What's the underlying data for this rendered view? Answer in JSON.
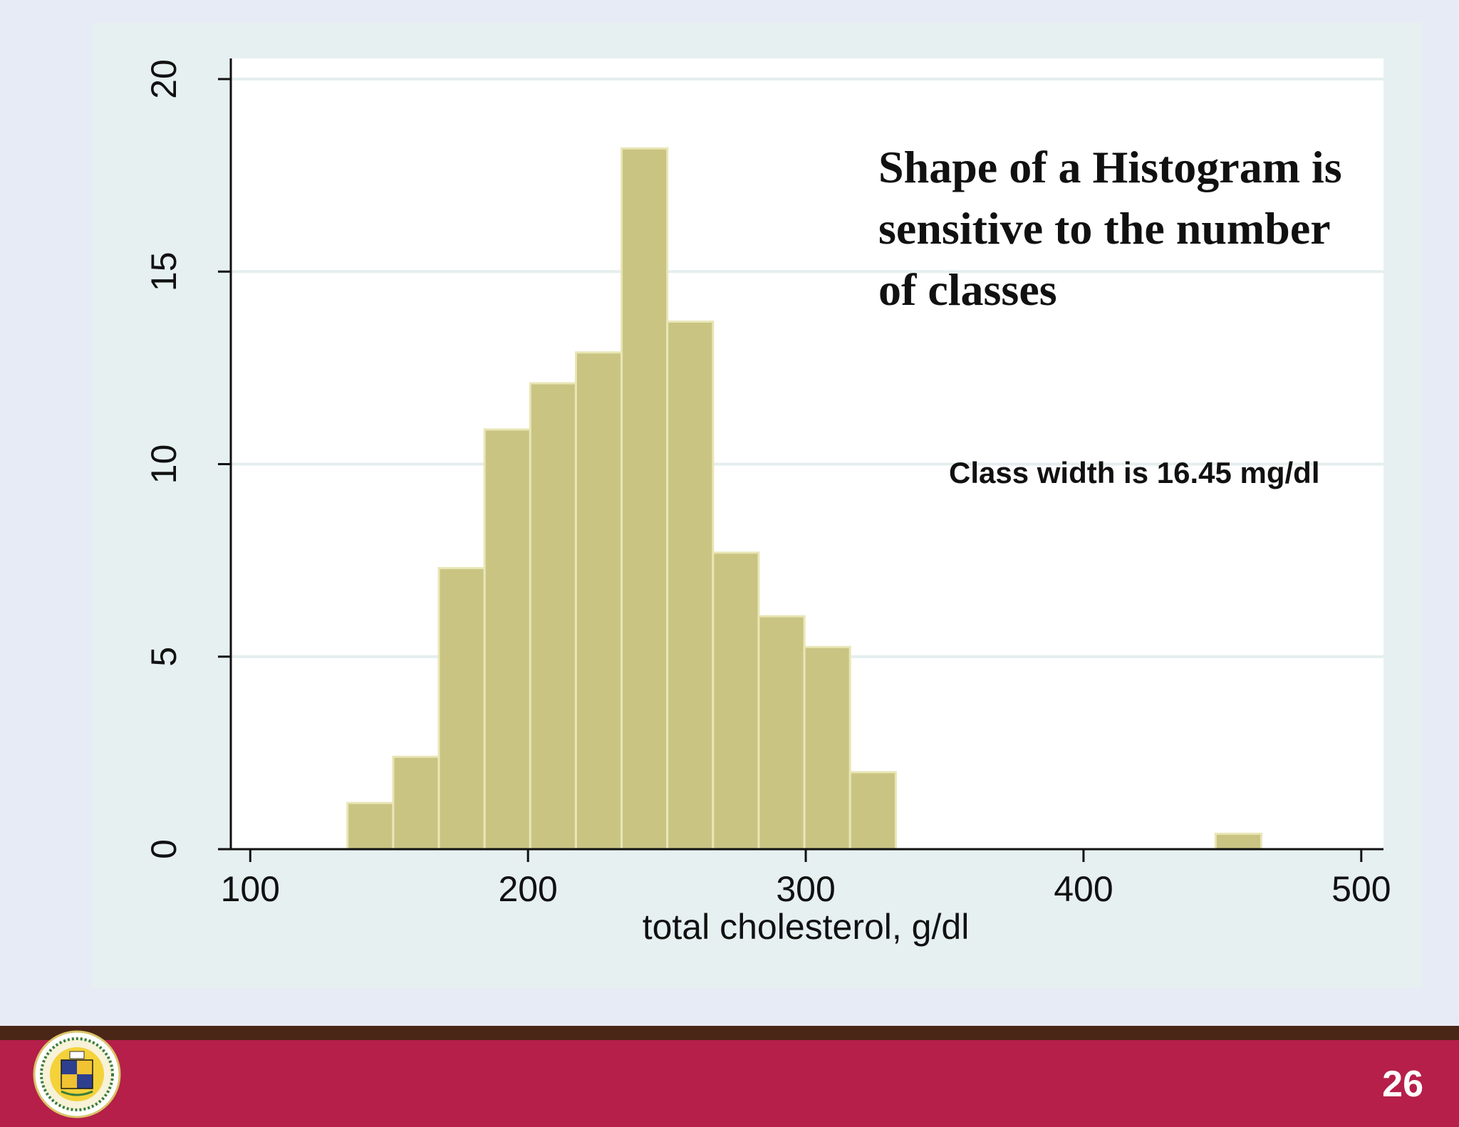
{
  "slide": {
    "page_number": "26",
    "logo_text": "MBARARA UNIVERSITY OF SCIENCE AND TECHNOLOGY"
  },
  "colors": {
    "bar_fill": "#c9c482",
    "bar_stroke": "#e9e6b6",
    "plot_bg": "#ffffff",
    "panel_bg": "#e6f0f1",
    "footer": "#b51f49",
    "footer_stripe": "#4a2617"
  },
  "annotations": {
    "title_lines": [
      "Shape of  a Histogram is",
      "sensitive to the number",
      "of  classes"
    ],
    "class_width": "Class width is 16.45 mg/dl"
  },
  "chart_data": {
    "type": "bar",
    "xlabel": "total cholesterol, g/dl",
    "ylabel": "",
    "xlim": [
      93,
      508
    ],
    "ylim": [
      0,
      20
    ],
    "x_ticks": [
      100,
      200,
      300,
      400,
      500
    ],
    "y_ticks": [
      0,
      5,
      10,
      15,
      20
    ],
    "grid": true,
    "bin_width": 16.45,
    "bins": [
      {
        "start": 135,
        "value": 1.2
      },
      {
        "start": 151.45,
        "value": 2.4
      },
      {
        "start": 167.9,
        "value": 7.3
      },
      {
        "start": 184.35,
        "value": 10.9
      },
      {
        "start": 200.8,
        "value": 12.1
      },
      {
        "start": 217.25,
        "value": 12.9
      },
      {
        "start": 233.7,
        "value": 18.2
      },
      {
        "start": 250.15,
        "value": 13.7
      },
      {
        "start": 266.6,
        "value": 7.7
      },
      {
        "start": 283.05,
        "value": 6.05
      },
      {
        "start": 299.5,
        "value": 5.25
      },
      {
        "start": 315.95,
        "value": 2.0
      },
      {
        "start": 447.55,
        "value": 0.4
      }
    ]
  }
}
